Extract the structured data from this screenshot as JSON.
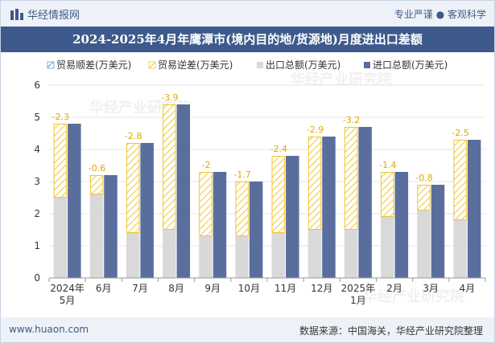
{
  "header": {
    "brand": "华经情报网",
    "slogan": "专业严谨 ● 客观科学"
  },
  "footer": {
    "site": "www.huaon.com",
    "source": "数据来源：中国海关，华经产业研究院整理"
  },
  "watermark": "华经产业研究院",
  "colors": {
    "export": "#d9d9d9",
    "import": "#5a6e9e",
    "deficit_stroke": "#f2c530",
    "surplus_stroke": "#5b9bd5",
    "label": "#e0a800",
    "title_bg": "#3e5a8c"
  },
  "chart_data": {
    "type": "bar",
    "title": "2024-2025年4月年鹰潭市(境内目的地/货源地)月度进出口差额",
    "legend": [
      "贸易顺差(万美元)",
      "贸易逆差(万美元)",
      "出口总额(万美元)",
      "进口总额(万美元)"
    ],
    "categories": [
      [
        "2024年",
        "5月"
      ],
      [
        "6月"
      ],
      [
        "7月"
      ],
      [
        "8月"
      ],
      [
        "9月"
      ],
      [
        "10月"
      ],
      [
        "11月"
      ],
      [
        "12月"
      ],
      [
        "2025年",
        "1月"
      ],
      [
        "2月"
      ],
      [
        "3月"
      ],
      [
        "4月"
      ]
    ],
    "ylim": [
      0,
      6
    ],
    "yticks": [
      0,
      1,
      2,
      3,
      4,
      5,
      6
    ],
    "series": [
      {
        "name": "出口总额(万美元)",
        "values": [
          2.5,
          2.6,
          1.4,
          1.5,
          1.3,
          1.3,
          1.4,
          1.5,
          1.5,
          1.9,
          2.1,
          1.8
        ]
      },
      {
        "name": "进口总额(万美元)",
        "values": [
          4.8,
          3.2,
          4.2,
          5.4,
          3.3,
          3.0,
          3.8,
          4.4,
          4.7,
          3.3,
          2.9,
          4.3
        ]
      }
    ],
    "balance_labels": [
      "-2.3",
      "-0.6",
      "-2.8",
      "-3.9",
      "-2",
      "-1.7",
      "-2.4",
      "-2.9",
      "-3.2",
      "-1.4",
      "-0.8",
      "-2.5"
    ]
  }
}
